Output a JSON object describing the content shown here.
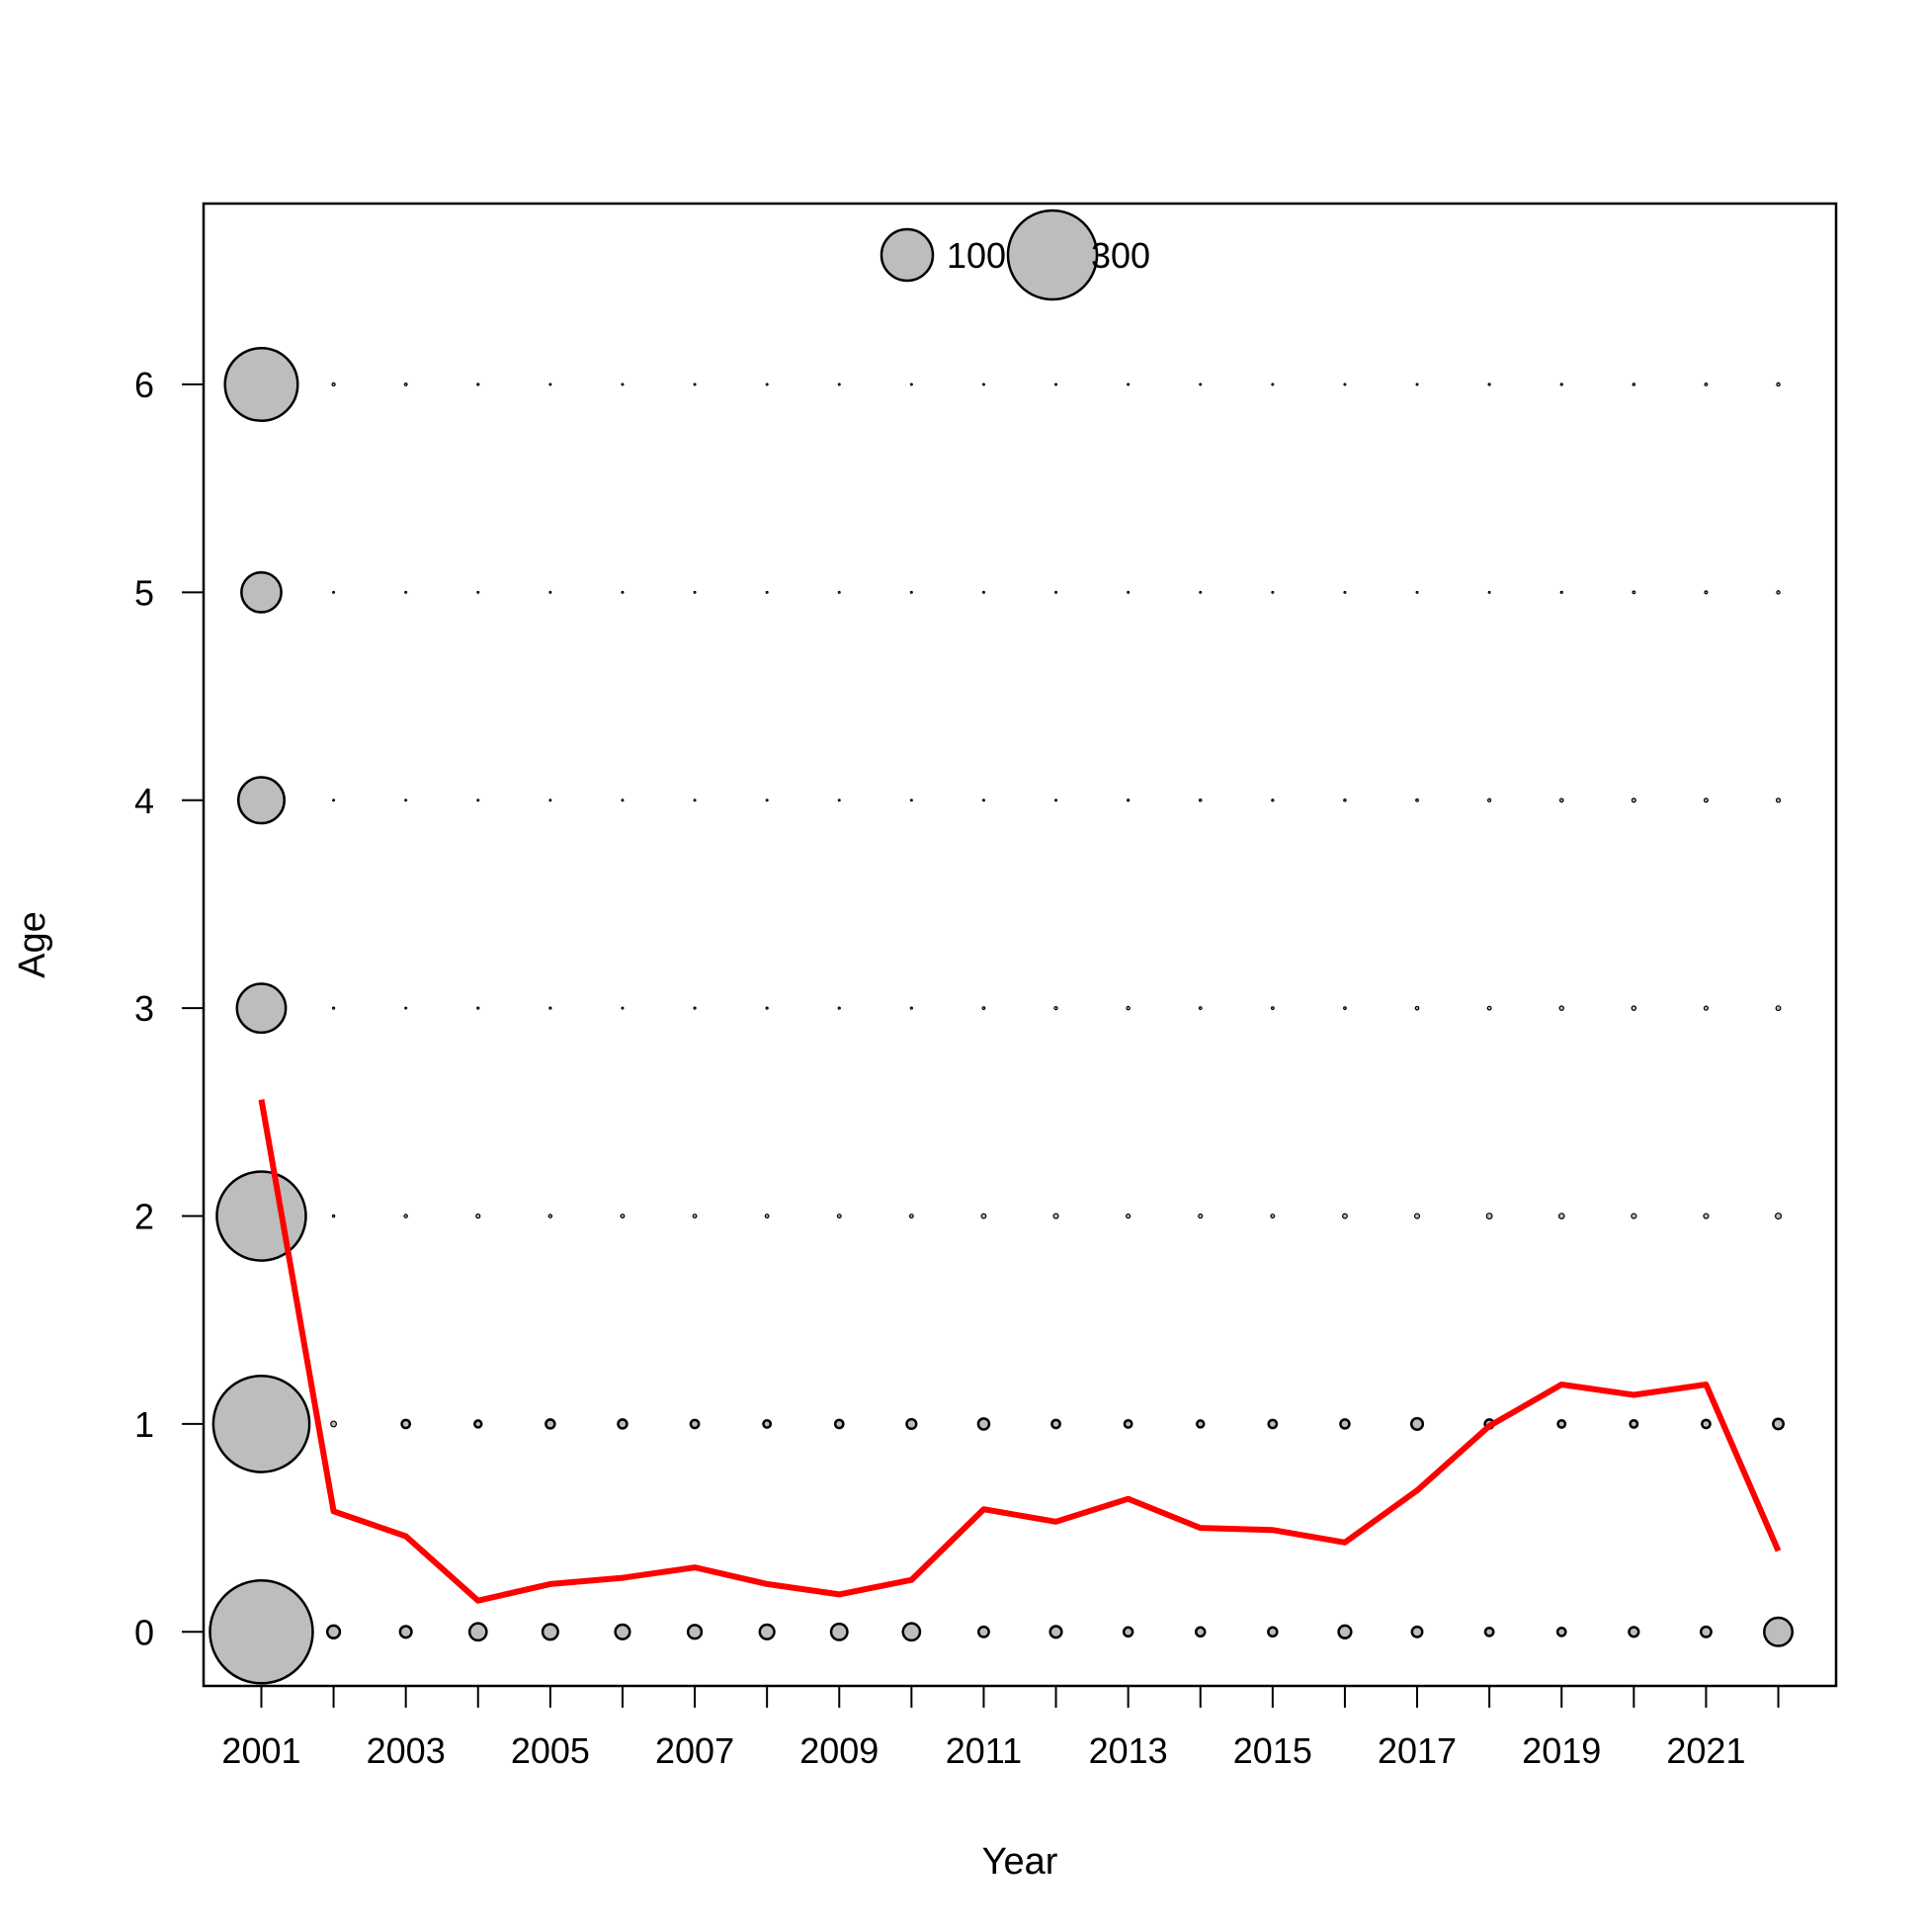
{
  "chart_data": {
    "type": "scatter",
    "chart_kind": "bubble plot with overlaid line",
    "title": "",
    "xlabel": "Year",
    "ylabel": "Age",
    "xlim": [
      2000.2,
      2022.8
    ],
    "ylim": [
      -0.26,
      6.87
    ],
    "x_ticks": [
      2001,
      2002,
      2003,
      2004,
      2005,
      2006,
      2007,
      2008,
      2009,
      2010,
      2011,
      2012,
      2013,
      2014,
      2015,
      2016,
      2017,
      2018,
      2019,
      2020,
      2021,
      2022
    ],
    "x_tick_labels": [
      "2001",
      "",
      "2003",
      "",
      "2005",
      "",
      "2007",
      "",
      "2009",
      "",
      "2011",
      "",
      "2013",
      "",
      "2015",
      "",
      "2017",
      "",
      "2019",
      "",
      "2021",
      ""
    ],
    "y_ticks": [
      0,
      1,
      2,
      3,
      4,
      5,
      6
    ],
    "y_tick_labels": [
      "0",
      "1",
      "2",
      "3",
      "4",
      "5",
      "6"
    ],
    "grid": false,
    "years": [
      2001,
      2002,
      2003,
      2004,
      2005,
      2006,
      2007,
      2008,
      2009,
      2010,
      2011,
      2012,
      2013,
      2014,
      2015,
      2016,
      2017,
      2018,
      2019,
      2020,
      2021,
      2022
    ],
    "ages": [
      0,
      1,
      2,
      3,
      4,
      5,
      6
    ],
    "bubble_series": {
      "marker_fill": "#bdbdbd",
      "marker_stroke": "#000000",
      "values_by_age": [
        [
          400,
          6,
          5,
          11,
          9,
          8,
          7,
          8,
          10,
          11,
          4,
          5,
          3,
          3,
          3,
          6,
          4,
          2.5,
          2.5,
          3.5,
          4,
          30
        ],
        [
          350,
          1.2,
          2.5,
          1.8,
          3,
          3,
          2.5,
          2,
          2.5,
          3.5,
          4.5,
          2.5,
          2,
          1.8,
          2.5,
          3,
          5,
          3,
          2,
          2,
          2.5,
          4
        ],
        [
          300,
          0.2,
          0.4,
          0.6,
          0.4,
          0.5,
          0.5,
          0.5,
          0.5,
          0.5,
          0.8,
          0.9,
          0.6,
          0.6,
          0.5,
          0.8,
          0.9,
          1.2,
          1.1,
          0.9,
          0.9,
          1.3
        ],
        [
          90,
          0.15,
          0.1,
          0.15,
          0.15,
          0.12,
          0.15,
          0.15,
          0.15,
          0.15,
          0.25,
          0.35,
          0.4,
          0.25,
          0.25,
          0.25,
          0.45,
          0.5,
          0.7,
          0.7,
          0.6,
          0.8
        ],
        [
          80,
          0.1,
          0.08,
          0.08,
          0.08,
          0.08,
          0.08,
          0.08,
          0.08,
          0.08,
          0.1,
          0.1,
          0.15,
          0.2,
          0.15,
          0.2,
          0.25,
          0.35,
          0.45,
          0.55,
          0.55,
          0.6
        ],
        [
          60,
          0.1,
          0.06,
          0.06,
          0.05,
          0.05,
          0.05,
          0.05,
          0.05,
          0.05,
          0.05,
          0.05,
          0.05,
          0.05,
          0.06,
          0.06,
          0.06,
          0.1,
          0.15,
          0.25,
          0.3,
          0.4
        ],
        [
          200,
          0.35,
          0.25,
          0.15,
          0.1,
          0.08,
          0.06,
          0.05,
          0.05,
          0.05,
          0.05,
          0.05,
          0.05,
          0.06,
          0.08,
          0.08,
          0.1,
          0.15,
          0.15,
          0.2,
          0.25,
          0.4
        ]
      ]
    },
    "line_series": {
      "color": "#ff0000",
      "x": [
        2001,
        2002,
        2003,
        2004,
        2005,
        2006,
        2007,
        2008,
        2009,
        2010,
        2011,
        2012,
        2013,
        2014,
        2015,
        2016,
        2017,
        2018,
        2019,
        2020,
        2021,
        2022
      ],
      "y": [
        2.56,
        0.58,
        0.46,
        0.15,
        0.23,
        0.26,
        0.31,
        0.23,
        0.18,
        0.25,
        0.59,
        0.53,
        0.64,
        0.5,
        0.49,
        0.43,
        0.68,
        0.99,
        1.19,
        1.14,
        1.19,
        0.39
      ]
    },
    "legend": {
      "placement": "top-center",
      "entries": [
        {
          "label": "100",
          "value": 100
        },
        {
          "label": "300",
          "value": 300
        }
      ]
    }
  }
}
